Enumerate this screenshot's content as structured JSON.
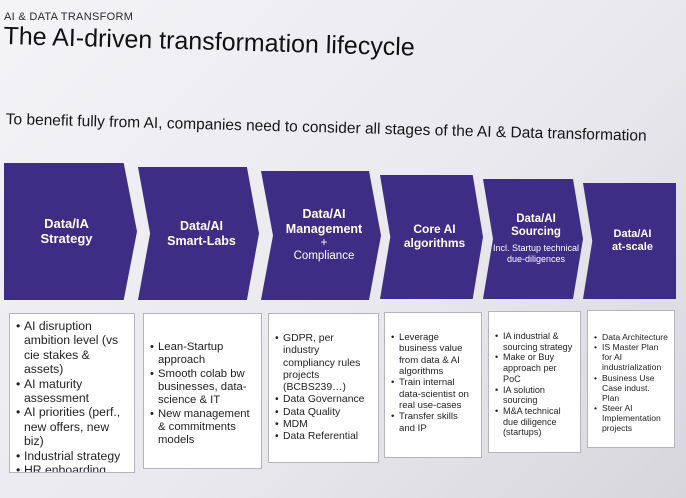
{
  "header": {
    "eyebrow": "AI & DATA TRANSFORM",
    "title": "The AI-driven transformation lifecycle",
    "subtitle": "To benefit fully from AI, companies need to consider all stages of the AI & Data transformation"
  },
  "colors": {
    "stage_fill": "#3d2d84",
    "stage_fill_dark": "#30246e",
    "box_border": "#b5b3c2"
  },
  "stages": [
    {
      "name": "Data/IA\nStrategy",
      "note": "",
      "sub": "",
      "items": [
        "AI disruption ambition level (vs cie stakes & assets)",
        "AI maturity assessment",
        "AI priorities (perf., new offers, new biz)",
        "Industrial strategy",
        "HR enboarding"
      ]
    },
    {
      "name": "Data/AI\nSmart-Labs",
      "note": "",
      "sub": "",
      "items": [
        "Lean-Startup approach",
        "Smooth colab bw businesses, data-science & IT",
        "New management & commitments models"
      ]
    },
    {
      "name": "Data/AI\nManagement",
      "note": "+\nCompliance",
      "sub": "",
      "items": [
        "GDPR, per industry compliancy rules projects (BCBS239…)",
        "Data Governance",
        "Data Quality",
        "MDM",
        "Data Referential"
      ]
    },
    {
      "name": "Core AI\nalgorithms",
      "note": "",
      "sub": "",
      "items": [
        "Leverage business value from data & AI algorithms",
        "Train internal data-scientist on real use-cases",
        "Transfer skills and IP"
      ]
    },
    {
      "name": "Data/AI\nSourcing",
      "note": "",
      "sub": "Incl. Startup technical\ndue-diligences",
      "items": [
        "IA industrial & sourcing strategy",
        "Make or Buy approach per PoC",
        "IA solution sourcing",
        "M&A technical due diligence (startups)"
      ]
    },
    {
      "name": "Data/AI\nat-scale",
      "note": "",
      "sub": "",
      "items": [
        "Data Architecture",
        "IS Master Plan for AI industrialization",
        "Business Use Case indust. Plan",
        "Steer AI Implementation projects"
      ]
    }
  ]
}
